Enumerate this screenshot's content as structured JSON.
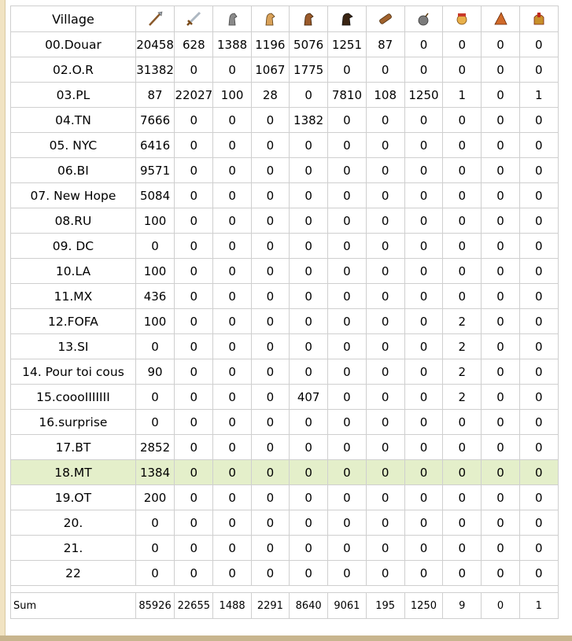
{
  "header": {
    "village_label": "Village",
    "unit_icons": [
      "spear-icon",
      "sword-icon",
      "axe-icon",
      "spy-icon",
      "light-cavalry-icon",
      "heavy-cavalry-icon",
      "ram-icon",
      "catapult-icon",
      "paladin-icon",
      "archer-icon",
      "noble-icon"
    ]
  },
  "rows": [
    {
      "name": "00.Douar",
      "values": [
        "20458",
        "628",
        "1388",
        "1196",
        "5076",
        "1251",
        "87",
        "0",
        "0",
        "0",
        "0"
      ]
    },
    {
      "name": "02.O.R",
      "values": [
        "31382",
        "0",
        "0",
        "1067",
        "1775",
        "0",
        "0",
        "0",
        "0",
        "0",
        "0"
      ]
    },
    {
      "name": "03.PL",
      "values": [
        "87",
        "22027",
        "100",
        "28",
        "0",
        "7810",
        "108",
        "1250",
        "1",
        "0",
        "1"
      ]
    },
    {
      "name": "04.TN",
      "values": [
        "7666",
        "0",
        "0",
        "0",
        "1382",
        "0",
        "0",
        "0",
        "0",
        "0",
        "0"
      ]
    },
    {
      "name": "05. NYC",
      "values": [
        "6416",
        "0",
        "0",
        "0",
        "0",
        "0",
        "0",
        "0",
        "0",
        "0",
        "0"
      ]
    },
    {
      "name": "06.BI",
      "values": [
        "9571",
        "0",
        "0",
        "0",
        "0",
        "0",
        "0",
        "0",
        "0",
        "0",
        "0"
      ]
    },
    {
      "name": "07. New Hope",
      "values": [
        "5084",
        "0",
        "0",
        "0",
        "0",
        "0",
        "0",
        "0",
        "0",
        "0",
        "0"
      ]
    },
    {
      "name": "08.RU",
      "values": [
        "100",
        "0",
        "0",
        "0",
        "0",
        "0",
        "0",
        "0",
        "0",
        "0",
        "0"
      ]
    },
    {
      "name": "09. DC",
      "values": [
        "0",
        "0",
        "0",
        "0",
        "0",
        "0",
        "0",
        "0",
        "0",
        "0",
        "0"
      ]
    },
    {
      "name": "10.LA",
      "values": [
        "100",
        "0",
        "0",
        "0",
        "0",
        "0",
        "0",
        "0",
        "0",
        "0",
        "0"
      ]
    },
    {
      "name": "11.MX",
      "values": [
        "436",
        "0",
        "0",
        "0",
        "0",
        "0",
        "0",
        "0",
        "0",
        "0",
        "0"
      ]
    },
    {
      "name": "12.FOFA",
      "values": [
        "100",
        "0",
        "0",
        "0",
        "0",
        "0",
        "0",
        "0",
        "2",
        "0",
        "0"
      ]
    },
    {
      "name": "13.SI",
      "values": [
        "0",
        "0",
        "0",
        "0",
        "0",
        "0",
        "0",
        "0",
        "2",
        "0",
        "0"
      ]
    },
    {
      "name": "14. Pour toi cous",
      "values": [
        "90",
        "0",
        "0",
        "0",
        "0",
        "0",
        "0",
        "0",
        "2",
        "0",
        "0"
      ]
    },
    {
      "name": "15.coooIIIIIII",
      "values": [
        "0",
        "0",
        "0",
        "0",
        "407",
        "0",
        "0",
        "0",
        "2",
        "0",
        "0"
      ]
    },
    {
      "name": "16.surprise",
      "values": [
        "0",
        "0",
        "0",
        "0",
        "0",
        "0",
        "0",
        "0",
        "0",
        "0",
        "0"
      ]
    },
    {
      "name": "17.BT",
      "values": [
        "2852",
        "0",
        "0",
        "0",
        "0",
        "0",
        "0",
        "0",
        "0",
        "0",
        "0"
      ]
    },
    {
      "name": "18.MT",
      "values": [
        "1384",
        "0",
        "0",
        "0",
        "0",
        "0",
        "0",
        "0",
        "0",
        "0",
        "0"
      ],
      "highlight": true
    },
    {
      "name": "19.OT",
      "values": [
        "200",
        "0",
        "0",
        "0",
        "0",
        "0",
        "0",
        "0",
        "0",
        "0",
        "0"
      ]
    },
    {
      "name": "20.",
      "values": [
        "0",
        "0",
        "0",
        "0",
        "0",
        "0",
        "0",
        "0",
        "0",
        "0",
        "0"
      ]
    },
    {
      "name": "21.",
      "values": [
        "0",
        "0",
        "0",
        "0",
        "0",
        "0",
        "0",
        "0",
        "0",
        "0",
        "0"
      ]
    },
    {
      "name": "22",
      "values": [
        "0",
        "0",
        "0",
        "0",
        "0",
        "0",
        "0",
        "0",
        "0",
        "0",
        "0"
      ]
    }
  ],
  "sum": {
    "label": "Sum",
    "values": [
      "85926",
      "22655",
      "1488",
      "2291",
      "8640",
      "9061",
      "195",
      "1250",
      "9",
      "0",
      "1"
    ]
  }
}
